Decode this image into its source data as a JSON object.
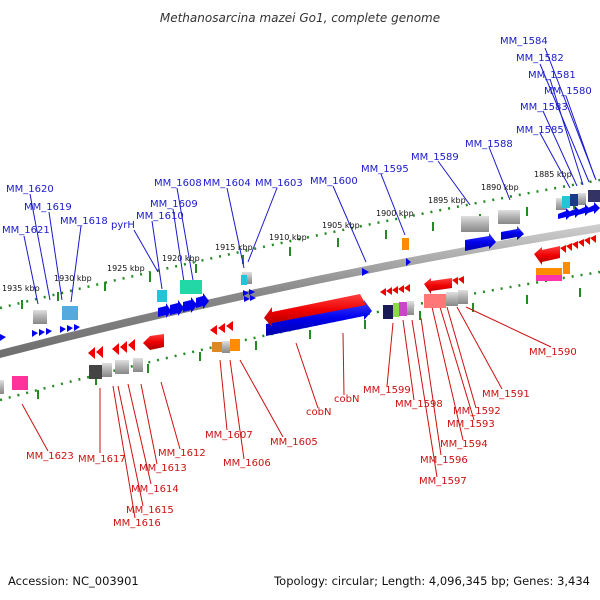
{
  "title": "Methanosarcina mazei Go1, complete genome",
  "footer": {
    "accession": "Accession: NC_003901",
    "summary": "Topology: circular; Length: 4,096,345 bp; Genes: 3,434"
  },
  "colors": {
    "forward_label": "#1a1acc",
    "reverse_label": "#cc1111",
    "backbone": "#999999",
    "ruler": "#228b22"
  },
  "scale_labels": [
    "1935 kbp",
    "1930 kbp",
    "1925 kbp",
    "1920 kbp",
    "1915 kbp",
    "1910 kbp",
    "1905 kbp",
    "1900 kbp",
    "1895 kbp",
    "1890 kbp",
    "1885 kbp"
  ],
  "forward_labels": [
    "MM_1584",
    "MM_1582",
    "MM_1581",
    "MM_1580",
    "MM_1583",
    "MM_1585",
    "MM_1588",
    "MM_1589",
    "MM_1595",
    "MM_1600",
    "MM_1603",
    "MM_1604",
    "MM_1608",
    "MM_1609",
    "MM_1610",
    "pyrH",
    "MM_1618",
    "MM_1619",
    "MM_1620",
    "MM_1621"
  ],
  "reverse_labels": [
    "MM_1590",
    "MM_1591",
    "MM_1592",
    "MM_1593",
    "MM_1594",
    "MM_1596",
    "MM_1597",
    "MM_1598",
    "MM_1599",
    "cobN",
    "cobN",
    "MM_1605",
    "MM_1606",
    "MM_1607",
    "MM_1612",
    "MM_1613",
    "MM_1614",
    "MM_1615",
    "MM_1616",
    "MM_1617",
    "MM_1623"
  ]
}
